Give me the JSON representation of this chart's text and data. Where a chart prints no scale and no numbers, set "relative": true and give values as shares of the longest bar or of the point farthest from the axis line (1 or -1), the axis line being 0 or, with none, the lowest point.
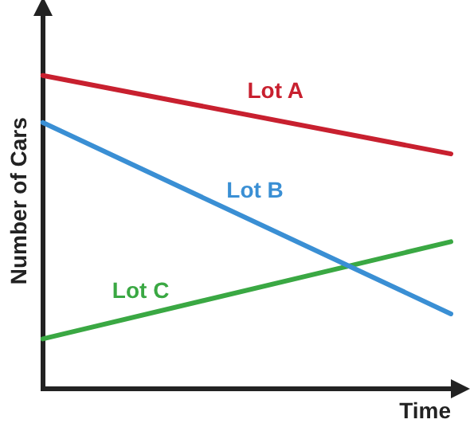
{
  "chart_data": {
    "type": "line",
    "relative": true,
    "xlabel": "Time",
    "ylabel": "Number of Cars",
    "categories": [
      null,
      null
    ],
    "legend": false,
    "grid": false,
    "marker": "none",
    "line_style": "solid",
    "series": [
      {
        "name": "Lot A",
        "color": "#c8202f",
        "values": [
          1,
          0.75
        ]
      },
      {
        "name": "Lot B",
        "color": "#3a8fd4",
        "values": [
          0.85,
          0.24
        ]
      },
      {
        "name": "Lot C",
        "color": "#3aa843",
        "values": [
          0.16,
          0.47
        ]
      }
    ]
  }
}
